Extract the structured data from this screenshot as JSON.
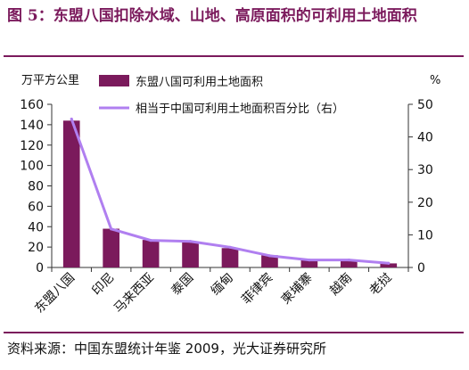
{
  "title": "图 5：东盟八国扣除水域、山地、高原面积的可利用土地面积",
  "source": "资料来源：中国东盟统计年鉴 2009，光大证券研究所",
  "colors": {
    "bar": "#7b1a5c",
    "line": "#b07ff0",
    "accent": "#7b1a5c"
  },
  "chart_data": {
    "type": "bar",
    "categories": [
      "东盟八国",
      "印尼",
      "马来西亚",
      "泰国",
      "缅甸",
      "菲律宾",
      "柬埔寨",
      "越南",
      "老挝"
    ],
    "series": [
      {
        "name": "东盟八国可利用土地面积",
        "type": "bar",
        "axis": "left",
        "values": [
          144,
          38,
          27,
          25,
          19,
          12,
          7,
          7,
          4
        ]
      },
      {
        "name": "相当于中国可利用土地面积百分比（右）",
        "type": "line",
        "axis": "right",
        "values": [
          45.5,
          11.8,
          8.3,
          8.0,
          6.2,
          3.6,
          2.3,
          2.3,
          1.3
        ]
      }
    ],
    "y_left": {
      "label": "万平方公里",
      "ylim": [
        0,
        160
      ],
      "ticks": [
        0,
        20,
        40,
        60,
        80,
        100,
        120,
        140,
        160
      ]
    },
    "y_right": {
      "label": "%",
      "ylim": [
        0,
        50
      ],
      "ticks": [
        0,
        10,
        20,
        30,
        40,
        50
      ]
    },
    "legend": "top-inside",
    "grid": false
  }
}
